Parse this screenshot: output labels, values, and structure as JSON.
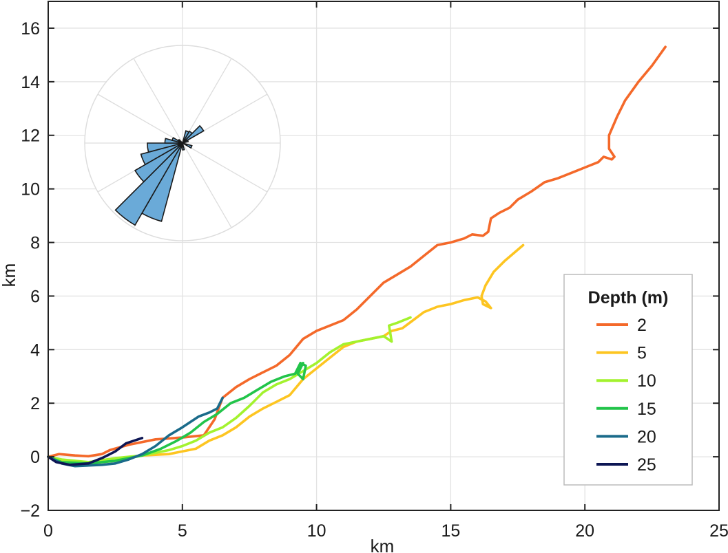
{
  "chart_data": {
    "type": "line",
    "xlabel": "km",
    "ylabel": "km",
    "xlim": [
      0,
      25
    ],
    "ylim": [
      -2,
      17
    ],
    "xticks": [
      0,
      5,
      10,
      15,
      20,
      25
    ],
    "yticks": [
      -2,
      0,
      2,
      4,
      6,
      8,
      10,
      12,
      14,
      16
    ],
    "grid": true,
    "legend": {
      "title": "Depth (m)",
      "position": "lower-right"
    },
    "series": [
      {
        "name": "2",
        "color": "#f4692a",
        "points": [
          [
            0,
            0
          ],
          [
            0.4,
            0.1
          ],
          [
            1,
            0.05
          ],
          [
            1.5,
            0.02
          ],
          [
            2,
            0.1
          ],
          [
            2.3,
            0.25
          ],
          [
            3,
            0.45
          ],
          [
            4,
            0.65
          ],
          [
            5,
            0.72
          ],
          [
            5.8,
            0.8
          ],
          [
            6.2,
            1.4
          ],
          [
            6.5,
            2.2
          ],
          [
            7,
            2.6
          ],
          [
            7.5,
            2.9
          ],
          [
            8,
            3.15
          ],
          [
            8.5,
            3.4
          ],
          [
            9,
            3.8
          ],
          [
            9.5,
            4.4
          ],
          [
            10,
            4.7
          ],
          [
            10.5,
            4.9
          ],
          [
            11,
            5.1
          ],
          [
            11.5,
            5.5
          ],
          [
            12,
            6
          ],
          [
            12.5,
            6.5
          ],
          [
            13,
            6.8
          ],
          [
            13.5,
            7.1
          ],
          [
            14,
            7.5
          ],
          [
            14.5,
            7.9
          ],
          [
            15,
            8
          ],
          [
            15.5,
            8.15
          ],
          [
            15.8,
            8.3
          ],
          [
            16.2,
            8.25
          ],
          [
            16.4,
            8.4
          ],
          [
            16.5,
            8.9
          ],
          [
            16.8,
            9.1
          ],
          [
            17.2,
            9.3
          ],
          [
            17.5,
            9.6
          ],
          [
            18,
            9.9
          ],
          [
            18.5,
            10.25
          ],
          [
            19,
            10.4
          ],
          [
            19.5,
            10.6
          ],
          [
            20,
            10.8
          ],
          [
            20.5,
            11
          ],
          [
            20.7,
            11.2
          ],
          [
            21,
            11.1
          ],
          [
            21.1,
            11.2
          ],
          [
            20.9,
            11.5
          ],
          [
            20.9,
            12
          ],
          [
            21.2,
            12.7
          ],
          [
            21.5,
            13.3
          ],
          [
            22,
            14
          ],
          [
            22.5,
            14.6
          ],
          [
            23,
            15.3
          ]
        ]
      },
      {
        "name": "5",
        "color": "#fdc521",
        "points": [
          [
            0,
            0
          ],
          [
            0.5,
            -0.15
          ],
          [
            1.5,
            -0.25
          ],
          [
            2.5,
            -0.15
          ],
          [
            3.5,
            0.05
          ],
          [
            4.5,
            0.1
          ],
          [
            5.5,
            0.3
          ],
          [
            6,
            0.6
          ],
          [
            6.5,
            0.8
          ],
          [
            7,
            1.1
          ],
          [
            7.5,
            1.5
          ],
          [
            8,
            1.8
          ],
          [
            8.5,
            2.05
          ],
          [
            9,
            2.3
          ],
          [
            9.5,
            2.9
          ],
          [
            10,
            3.3
          ],
          [
            10.5,
            3.7
          ],
          [
            11,
            4.1
          ],
          [
            11.5,
            4.3
          ],
          [
            12,
            4.4
          ],
          [
            12.5,
            4.5
          ],
          [
            12.8,
            4.7
          ],
          [
            13.2,
            4.8
          ],
          [
            13.6,
            5.1
          ],
          [
            14,
            5.4
          ],
          [
            14.5,
            5.6
          ],
          [
            15,
            5.7
          ],
          [
            15.5,
            5.85
          ],
          [
            16,
            5.95
          ],
          [
            16.3,
            5.8
          ],
          [
            16.5,
            5.55
          ],
          [
            16.2,
            5.7
          ],
          [
            16.15,
            6
          ],
          [
            16.3,
            6.4
          ],
          [
            16.6,
            6.9
          ],
          [
            17,
            7.3
          ],
          [
            17.7,
            7.9
          ]
        ]
      },
      {
        "name": "10",
        "color": "#a3f22e",
        "points": [
          [
            0,
            0
          ],
          [
            0.5,
            -0.1
          ],
          [
            1.5,
            -0.2
          ],
          [
            2.5,
            -0.05
          ],
          [
            3.5,
            0.05
          ],
          [
            4.5,
            0.25
          ],
          [
            5,
            0.4
          ],
          [
            5.5,
            0.6
          ],
          [
            6,
            0.9
          ],
          [
            6.5,
            1.1
          ],
          [
            7,
            1.45
          ],
          [
            7.5,
            1.9
          ],
          [
            8,
            2.4
          ],
          [
            8.5,
            2.7
          ],
          [
            9,
            2.9
          ],
          [
            9.5,
            3.2
          ],
          [
            10,
            3.5
          ],
          [
            10.5,
            3.9
          ],
          [
            11,
            4.2
          ],
          [
            11.5,
            4.3
          ],
          [
            12,
            4.4
          ],
          [
            12.5,
            4.5
          ],
          [
            12.8,
            4.3
          ],
          [
            12.7,
            4.9
          ],
          [
            13,
            5
          ],
          [
            13.5,
            5.2
          ]
        ]
      },
      {
        "name": "15",
        "color": "#22c44a",
        "points": [
          [
            0,
            0
          ],
          [
            0.5,
            -0.2
          ],
          [
            1.5,
            -0.25
          ],
          [
            2.5,
            -0.15
          ],
          [
            3.5,
            0.05
          ],
          [
            4.2,
            0.3
          ],
          [
            4.8,
            0.6
          ],
          [
            5.3,
            0.9
          ],
          [
            5.8,
            1.3
          ],
          [
            6.3,
            1.6
          ],
          [
            6.8,
            2
          ],
          [
            7.3,
            2.2
          ],
          [
            7.8,
            2.5
          ],
          [
            8.3,
            2.8
          ],
          [
            8.8,
            3
          ],
          [
            9.2,
            3.1
          ],
          [
            9.4,
            3.5
          ],
          [
            9.6,
            3.4
          ],
          [
            9.5,
            2.9
          ],
          [
            9.3,
            3.1
          ],
          [
            9.5,
            3.5
          ]
        ]
      },
      {
        "name": "20",
        "color": "#1a6b8a",
        "points": [
          [
            0,
            0
          ],
          [
            0.5,
            -0.25
          ],
          [
            1,
            -0.35
          ],
          [
            2,
            -0.3
          ],
          [
            2.5,
            -0.25
          ],
          [
            3,
            -0.1
          ],
          [
            3.5,
            0.1
          ],
          [
            4,
            0.4
          ],
          [
            4.5,
            0.8
          ],
          [
            5,
            1.1
          ],
          [
            5.3,
            1.3
          ],
          [
            5.6,
            1.5
          ],
          [
            6,
            1.65
          ],
          [
            6.3,
            1.8
          ],
          [
            6.5,
            2.2
          ]
        ]
      },
      {
        "name": "25",
        "color": "#0d1654",
        "points": [
          [
            0,
            0
          ],
          [
            0.3,
            -0.2
          ],
          [
            0.8,
            -0.3
          ],
          [
            1.5,
            -0.25
          ],
          [
            2,
            -0.05
          ],
          [
            2.5,
            0.2
          ],
          [
            2.9,
            0.5
          ],
          [
            3.2,
            0.6
          ],
          [
            3.5,
            0.7
          ]
        ]
      }
    ],
    "inset_rose": {
      "type": "polar-histogram",
      "color": "#6aaad8",
      "bins_deg": [
        [
          195,
          210,
          0.83
        ],
        [
          210,
          225,
          0.97
        ],
        [
          225,
          240,
          0.56
        ],
        [
          240,
          255,
          0.44
        ],
        [
          255,
          270,
          0.36
        ],
        [
          270,
          285,
          0.18
        ],
        [
          285,
          300,
          0.11
        ],
        [
          30,
          45,
          0.14
        ],
        [
          45,
          60,
          0.25
        ],
        [
          15,
          30,
          0.13
        ],
        [
          60,
          75,
          0.06
        ],
        [
          105,
          120,
          0.1
        ],
        [
          300,
          315,
          0.05
        ],
        [
          165,
          180,
          0.07
        ]
      ]
    }
  }
}
